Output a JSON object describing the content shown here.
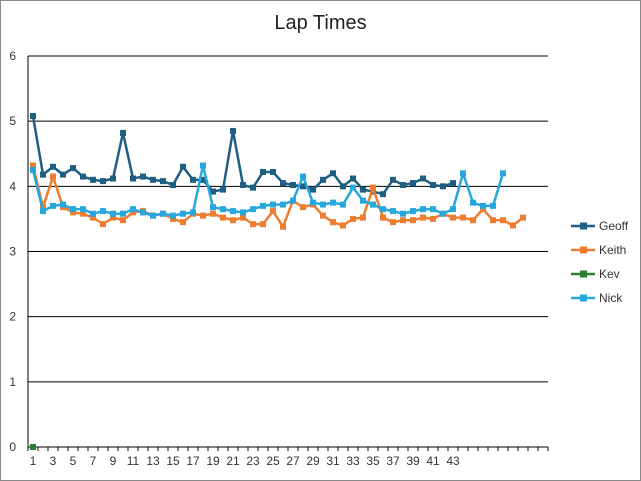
{
  "chart_data": {
    "type": "line",
    "title": "Lap Times",
    "xlabel": "",
    "ylabel": "",
    "ylim": [
      0,
      6
    ],
    "y_ticks": [
      "0",
      "1",
      "2",
      "3",
      "4",
      "5",
      "6"
    ],
    "x_ticks": [
      "1",
      "3",
      "5",
      "7",
      "9",
      "11",
      "13",
      "15",
      "17",
      "19",
      "21",
      "23",
      "25",
      "27",
      "29",
      "31",
      "33",
      "35",
      "37",
      "39",
      "41",
      "43"
    ],
    "grid": "horizontal",
    "legend_position": "right",
    "x_count": 52,
    "series": [
      {
        "name": "Geoff",
        "color": "#1f5f82",
        "values": [
          5.08,
          4.18,
          4.3,
          4.18,
          4.28,
          4.15,
          4.1,
          4.08,
          4.12,
          4.82,
          4.12,
          4.15,
          4.1,
          4.08,
          4.02,
          4.3,
          4.1,
          4.1,
          3.92,
          3.95,
          4.85,
          4.02,
          3.98,
          4.22,
          4.22,
          4.05,
          4.02,
          4.0,
          3.95,
          4.1,
          4.2,
          4.0,
          4.12,
          3.95,
          3.92,
          3.88,
          4.1,
          4.02,
          4.05,
          4.12,
          4.02,
          4.0,
          4.05
        ]
      },
      {
        "name": "Keith",
        "color": "#ee7d31",
        "values": [
          4.32,
          3.68,
          4.15,
          3.68,
          3.6,
          3.58,
          3.52,
          3.42,
          3.52,
          3.48,
          3.6,
          3.62,
          3.55,
          3.58,
          3.5,
          3.45,
          3.58,
          3.55,
          3.58,
          3.52,
          3.48,
          3.52,
          3.42,
          3.42,
          3.62,
          3.38,
          3.78,
          3.68,
          3.72,
          3.55,
          3.45,
          3.4,
          3.5,
          3.52,
          3.98,
          3.52,
          3.45,
          3.48,
          3.48,
          3.52,
          3.5,
          3.58,
          3.52,
          3.52,
          3.48,
          3.65,
          3.48,
          3.48,
          3.4,
          3.52
        ]
      },
      {
        "name": "Kev",
        "color": "#2e7d32",
        "values": [
          0
        ]
      },
      {
        "name": "Nick",
        "color": "#27a7dc",
        "values": [
          4.25,
          3.62,
          3.7,
          3.72,
          3.65,
          3.65,
          3.58,
          3.62,
          3.58,
          3.58,
          3.65,
          3.6,
          3.55,
          3.58,
          3.55,
          3.58,
          3.6,
          4.32,
          3.68,
          3.65,
          3.62,
          3.6,
          3.65,
          3.7,
          3.72,
          3.72,
          3.78,
          4.15,
          3.75,
          3.72,
          3.75,
          3.72,
          3.98,
          3.78,
          3.72,
          3.65,
          3.62,
          3.58,
          3.62,
          3.65,
          3.65,
          3.58,
          3.65,
          4.2,
          3.75,
          3.7,
          3.7,
          4.2
        ]
      }
    ]
  }
}
